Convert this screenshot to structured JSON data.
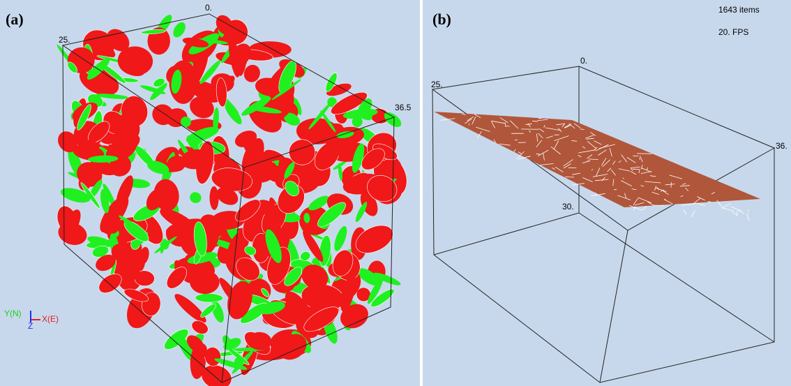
{
  "panel_a": {
    "label": "(a)",
    "axis_labels": [
      "0.",
      "25.",
      "36.5"
    ],
    "compass": {
      "y": "Y(N)",
      "x": "X(E)",
      "z": "Z"
    }
  },
  "panel_b": {
    "label": "(b)",
    "axis_labels": [
      "0.",
      "25.",
      "36.",
      "30."
    ],
    "items": "1643 items",
    "fps": "20. FPS"
  }
}
